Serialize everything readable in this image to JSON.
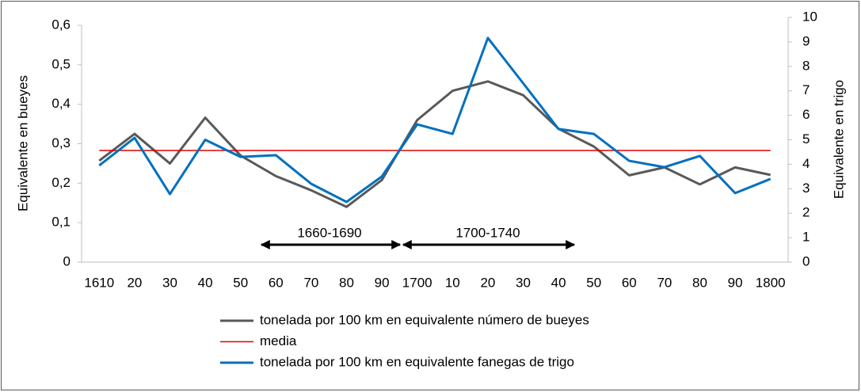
{
  "chart_data": {
    "type": "line",
    "categories": [
      "1610",
      "20",
      "30",
      "40",
      "50",
      "60",
      "70",
      "80",
      "90",
      "1700",
      "10",
      "20",
      "30",
      "40",
      "50",
      "60",
      "70",
      "80",
      "90",
      "1800"
    ],
    "series": [
      {
        "name": "tonelada por 100 km en equivalente número de bueyes",
        "color": "#595959",
        "width": 3,
        "values": [
          0.257,
          0.325,
          0.25,
          0.366,
          0.27,
          0.218,
          0.182,
          0.14,
          0.208,
          0.36,
          0.434,
          0.458,
          0.423,
          0.338,
          0.293,
          0.22,
          0.24,
          0.197,
          0.24,
          0.221
        ]
      },
      {
        "name": "media",
        "color": "#e00000",
        "width": 1.5,
        "values": [
          0.283,
          0.283,
          0.283,
          0.283,
          0.283,
          0.283,
          0.283,
          0.283,
          0.283,
          0.283,
          0.283,
          0.283,
          0.283,
          0.283,
          0.283,
          0.283,
          0.283,
          0.283,
          0.283,
          0.283
        ]
      },
      {
        "name": "tonelada por 100 km en equivalente fanegas de trigo",
        "color": "#0070c0",
        "width": 3,
        "axis": "y2",
        "values": [
          3.95,
          5.08,
          2.78,
          5.0,
          4.3,
          4.37,
          3.2,
          2.46,
          3.5,
          5.63,
          5.24,
          9.16,
          7.31,
          5.44,
          5.24,
          4.14,
          3.88,
          4.34,
          2.82,
          3.4
        ]
      }
    ],
    "y_label": "Equivalente en bueyes",
    "y2_label": "Equivalente en trigo",
    "ylim": [
      0,
      0.6
    ],
    "yticks": [
      {
        "value": 0,
        "label": "0"
      },
      {
        "value": 0.1,
        "label": "0,1"
      },
      {
        "value": 0.2,
        "label": "0,2"
      },
      {
        "value": 0.3,
        "label": "0,3"
      },
      {
        "value": 0.4,
        "label": "0,4"
      },
      {
        "value": 0.5,
        "label": "0,5"
      },
      {
        "value": 0.6,
        "label": "0,6"
      }
    ],
    "y2lim": [
      0,
      10
    ],
    "y2ticks": [
      0,
      1,
      2,
      3,
      4,
      5,
      6,
      7,
      8,
      9,
      10
    ],
    "annotations": [
      "1660-1690",
      "1700-1740"
    ],
    "legend": "bottom"
  }
}
